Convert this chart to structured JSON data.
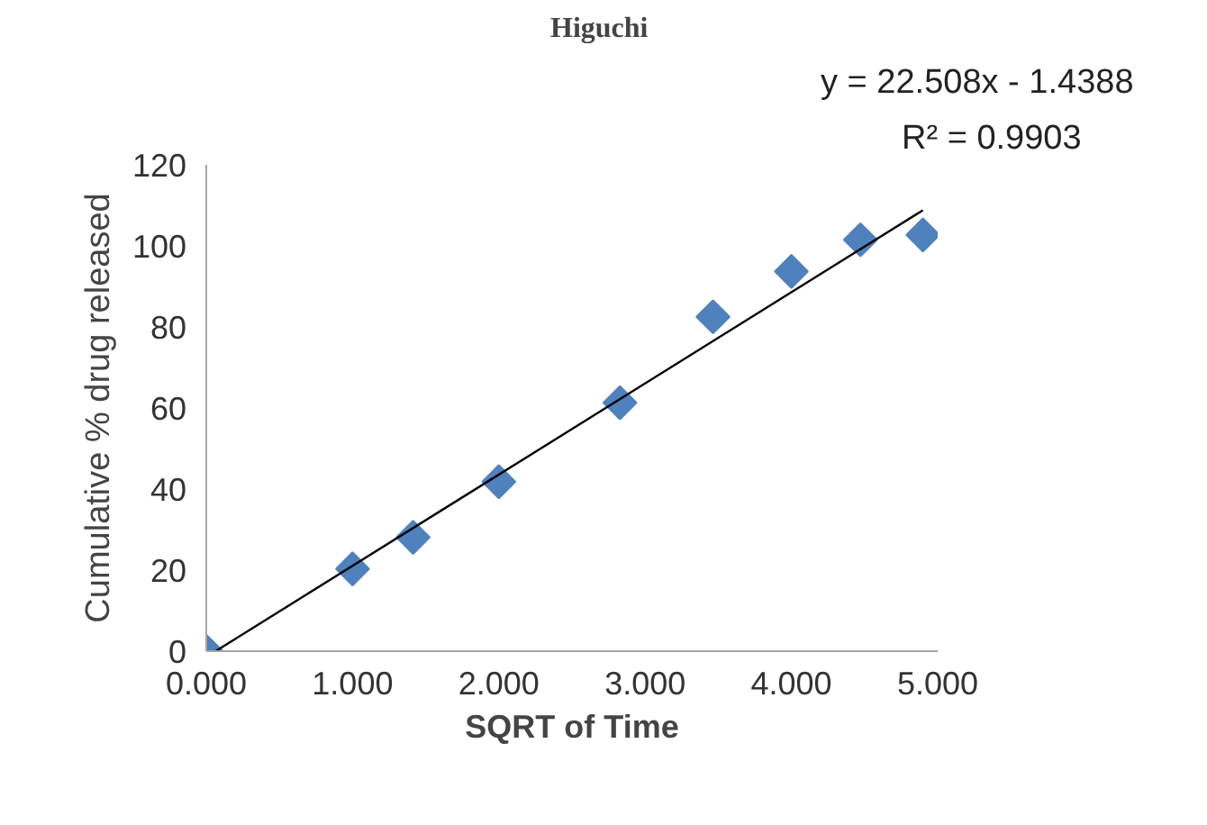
{
  "chart_data": {
    "type": "scatter",
    "title": "Higuchi",
    "xlabel": "SQRT of Time",
    "ylabel": "Cumulative % drug released",
    "annotations": [
      "y = 22.508x - 1.4388",
      "R² = 0.9903"
    ],
    "marker": "diamond",
    "grid": false,
    "xlim": [
      0,
      5
    ],
    "ylim": [
      0,
      120
    ],
    "xticks": [
      {
        "value": 0,
        "label": "0.000"
      },
      {
        "value": 1,
        "label": "1.000"
      },
      {
        "value": 2,
        "label": "2.000"
      },
      {
        "value": 3,
        "label": "3.000"
      },
      {
        "value": 4,
        "label": "4.000"
      },
      {
        "value": 5,
        "label": "5.000"
      }
    ],
    "yticks": [
      0,
      20,
      40,
      60,
      80,
      100,
      120
    ],
    "series": [
      {
        "type": "scatter",
        "color": "#4f81bd",
        "x": [
          0,
          1,
          1.414,
          2,
          2.828,
          3.464,
          4,
          4.472,
          4.899
        ],
        "values": [
          0,
          20.3,
          28.1,
          41.8,
          61.3,
          82.5,
          93.7,
          101.5,
          102.7
        ]
      },
      {
        "type": "line",
        "marker": "none",
        "color": "#000000",
        "x": [
          0.064,
          4.899
        ],
        "values": [
          0,
          108.8
        ]
      }
    ]
  }
}
